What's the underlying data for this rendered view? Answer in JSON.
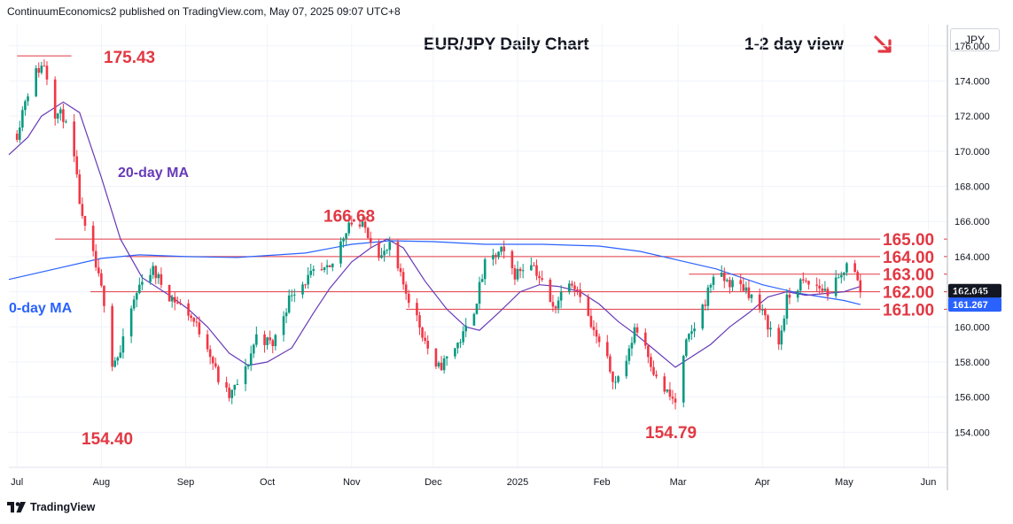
{
  "header": "ContinuumEconomics2 published on TradingView.com, May 07, 2025 09:07 UTC+8",
  "currency_button": "JPY",
  "footer_brand": "TradingView",
  "colors": {
    "up": "#089981",
    "down": "#f23645",
    "level": "#e23843",
    "ma20": "#673ab7",
    "ma200": "#2962ff",
    "badge": "#131722",
    "badge_ma": "#2962ff"
  },
  "icons": {
    "trend_arrow": "arrow-down-right-icon",
    "brand": "tradingview-logo-icon"
  },
  "chart_data": {
    "type": "candlestick",
    "title": "EUR/JPY Daily Chart",
    "subtitle": "1-2 day view",
    "y_ticks": [
      "154.000",
      "156.000",
      "158.000",
      "160.000",
      "162.000",
      "164.000",
      "166.000",
      "168.000",
      "170.000",
      "172.000",
      "174.000",
      "176.000"
    ],
    "ylim": [
      152.0,
      177.2
    ],
    "x_ticks": [
      "Jul",
      "Aug",
      "Sep",
      "Oct",
      "Nov",
      "Dec",
      "2025",
      "Feb",
      "Mar",
      "Apr",
      "May",
      "Jun"
    ],
    "x_tick_dates": [
      "2024-07-01",
      "2024-08-01",
      "2024-09-01",
      "2024-10-01",
      "2024-11-01",
      "2024-12-01",
      "2025-01-01",
      "2025-02-01",
      "2025-03-01",
      "2025-04-01",
      "2025-05-01",
      "2025-06-01"
    ],
    "x_range": [
      "2024-06-28",
      "2025-06-08"
    ],
    "levels": [
      {
        "label": "165.00",
        "value": 165.0,
        "start": "2024-07-15"
      },
      {
        "label": "164.00",
        "value": 164.0,
        "start": "2024-08-10"
      },
      {
        "label": "163.00",
        "value": 163.0,
        "start": "2025-03-05"
      },
      {
        "label": "162.00",
        "value": 162.0,
        "start": "2024-07-28"
      },
      {
        "label": "161.00",
        "value": 161.0,
        "start": "2024-11-21"
      }
    ],
    "annotations": [
      {
        "text": "175.43",
        "value": 175.43,
        "date": "2024-07-11"
      },
      {
        "text": "166.68",
        "value": 166.68,
        "date": "2024-10-31"
      },
      {
        "text": "154.40",
        "value": 154.4,
        "date": "2024-08-05"
      },
      {
        "text": "154.79",
        "value": 154.79,
        "date": "2025-02-28"
      }
    ],
    "ma_labels": [
      "20-day MA",
      "0-day MA"
    ],
    "price_badges": [
      {
        "text": "162.045",
        "value": 162.045
      },
      {
        "text": "161.267",
        "value": 161.267
      }
    ],
    "anchors": [
      [
        "2024-07-01",
        171.0
      ],
      [
        "2024-07-04",
        173.0
      ],
      [
        "2024-07-08",
        174.5
      ],
      [
        "2024-07-11",
        175.0
      ],
      [
        "2024-07-15",
        172.2
      ],
      [
        "2024-07-18",
        172.0
      ],
      [
        "2024-07-22",
        169.5
      ],
      [
        "2024-07-25",
        166.0
      ],
      [
        "2024-07-29",
        164.0
      ],
      [
        "2024-08-02",
        161.5
      ],
      [
        "2024-08-05",
        158.0
      ],
      [
        "2024-08-08",
        158.5
      ],
      [
        "2024-08-12",
        161.0
      ],
      [
        "2024-08-16",
        162.8
      ],
      [
        "2024-08-20",
        163.2
      ],
      [
        "2024-08-26",
        161.8
      ],
      [
        "2024-09-02",
        160.8
      ],
      [
        "2024-09-09",
        159.0
      ],
      [
        "2024-09-13",
        157.0
      ],
      [
        "2024-09-17",
        156.0
      ],
      [
        "2024-09-23",
        157.5
      ],
      [
        "2024-09-27",
        159.5
      ],
      [
        "2024-10-03",
        159.0
      ],
      [
        "2024-10-10",
        162.0
      ],
      [
        "2024-10-18",
        163.0
      ],
      [
        "2024-10-24",
        163.2
      ],
      [
        "2024-10-31",
        166.0
      ],
      [
        "2024-11-06",
        165.6
      ],
      [
        "2024-11-12",
        164.0
      ],
      [
        "2024-11-15",
        164.5
      ],
      [
        "2024-11-19",
        162.8
      ],
      [
        "2024-11-25",
        160.5
      ],
      [
        "2024-12-02",
        157.5
      ],
      [
        "2024-12-05",
        158.0
      ],
      [
        "2024-12-12",
        159.5
      ],
      [
        "2024-12-16",
        161.0
      ],
      [
        "2024-12-20",
        163.5
      ],
      [
        "2024-12-26",
        164.3
      ],
      [
        "2024-12-31",
        163.0
      ],
      [
        "2025-01-06",
        163.8
      ],
      [
        "2025-01-10",
        162.5
      ],
      [
        "2025-01-14",
        161.0
      ],
      [
        "2025-01-20",
        162.8
      ],
      [
        "2025-01-24",
        162.0
      ],
      [
        "2025-01-28",
        160.0
      ],
      [
        "2025-02-03",
        158.0
      ],
      [
        "2025-02-06",
        156.8
      ],
      [
        "2025-02-11",
        158.5
      ],
      [
        "2025-02-13",
        160.0
      ],
      [
        "2025-02-17",
        159.0
      ],
      [
        "2025-02-21",
        157.0
      ],
      [
        "2025-02-26",
        156.0
      ],
      [
        "2025-02-28",
        155.7
      ],
      [
        "2025-03-04",
        159.0
      ],
      [
        "2025-03-07",
        160.0
      ],
      [
        "2025-03-11",
        161.5
      ],
      [
        "2025-03-14",
        163.0
      ],
      [
        "2025-03-20",
        162.5
      ],
      [
        "2025-03-26",
        162.2
      ],
      [
        "2025-03-31",
        161.0
      ],
      [
        "2025-04-07",
        159.0
      ],
      [
        "2025-04-10",
        161.5
      ],
      [
        "2025-04-15",
        162.5
      ],
      [
        "2025-04-21",
        162.3
      ],
      [
        "2025-04-25",
        162.0
      ],
      [
        "2025-04-30",
        162.8
      ],
      [
        "2025-05-02",
        163.8
      ],
      [
        "2025-05-05",
        163.0
      ],
      [
        "2025-05-07",
        162.05
      ]
    ],
    "ma20": [
      [
        "2024-06-28",
        169.8
      ],
      [
        "2024-07-05",
        170.8
      ],
      [
        "2024-07-10",
        172.0
      ],
      [
        "2024-07-18",
        172.8
      ],
      [
        "2024-07-24",
        172.2
      ],
      [
        "2024-08-01",
        168.5
      ],
      [
        "2024-08-08",
        165.0
      ],
      [
        "2024-08-16",
        162.8
      ],
      [
        "2024-08-26",
        161.8
      ],
      [
        "2024-09-02",
        161.0
      ],
      [
        "2024-09-09",
        160.0
      ],
      [
        "2024-09-17",
        158.5
      ],
      [
        "2024-09-24",
        157.8
      ],
      [
        "2024-10-01",
        158.0
      ],
      [
        "2024-10-10",
        158.8
      ],
      [
        "2024-10-18",
        160.8
      ],
      [
        "2024-10-24",
        162.2
      ],
      [
        "2024-11-01",
        163.7
      ],
      [
        "2024-11-08",
        164.5
      ],
      [
        "2024-11-14",
        165.0
      ],
      [
        "2024-11-20",
        164.5
      ],
      [
        "2024-11-28",
        162.6
      ],
      [
        "2024-12-06",
        161.0
      ],
      [
        "2024-12-13",
        160.0
      ],
      [
        "2024-12-18",
        159.8
      ],
      [
        "2024-12-25",
        160.8
      ],
      [
        "2025-01-02",
        162.0
      ],
      [
        "2025-01-09",
        162.4
      ],
      [
        "2025-01-16",
        162.3
      ],
      [
        "2025-01-24",
        162.0
      ],
      [
        "2025-01-31",
        161.3
      ],
      [
        "2025-02-07",
        160.3
      ],
      [
        "2025-02-14",
        159.5
      ],
      [
        "2025-02-21",
        158.6
      ],
      [
        "2025-02-28",
        157.7
      ],
      [
        "2025-03-06",
        158.3
      ],
      [
        "2025-03-13",
        159.0
      ],
      [
        "2025-03-20",
        160.0
      ],
      [
        "2025-03-27",
        160.8
      ],
      [
        "2025-04-03",
        161.7
      ],
      [
        "2025-04-10",
        162.0
      ],
      [
        "2025-04-17",
        161.8
      ],
      [
        "2025-04-24",
        161.9
      ],
      [
        "2025-05-01",
        162.0
      ],
      [
        "2025-05-07",
        162.3
      ]
    ],
    "ma200": [
      [
        "2024-06-28",
        162.7
      ],
      [
        "2024-07-15",
        163.3
      ],
      [
        "2024-08-01",
        163.9
      ],
      [
        "2024-08-15",
        164.1
      ],
      [
        "2024-09-01",
        164.0
      ],
      [
        "2024-09-20",
        163.95
      ],
      [
        "2024-10-15",
        164.2
      ],
      [
        "2024-11-01",
        164.7
      ],
      [
        "2024-11-15",
        164.9
      ],
      [
        "2024-12-01",
        164.85
      ],
      [
        "2024-12-20",
        164.7
      ],
      [
        "2025-01-10",
        164.7
      ],
      [
        "2025-01-31",
        164.6
      ],
      [
        "2025-02-15",
        164.3
      ],
      [
        "2025-03-01",
        163.8
      ],
      [
        "2025-03-15",
        163.3
      ],
      [
        "2025-04-01",
        162.4
      ],
      [
        "2025-04-15",
        161.9
      ],
      [
        "2025-05-01",
        161.5
      ],
      [
        "2025-05-07",
        161.27
      ]
    ]
  }
}
